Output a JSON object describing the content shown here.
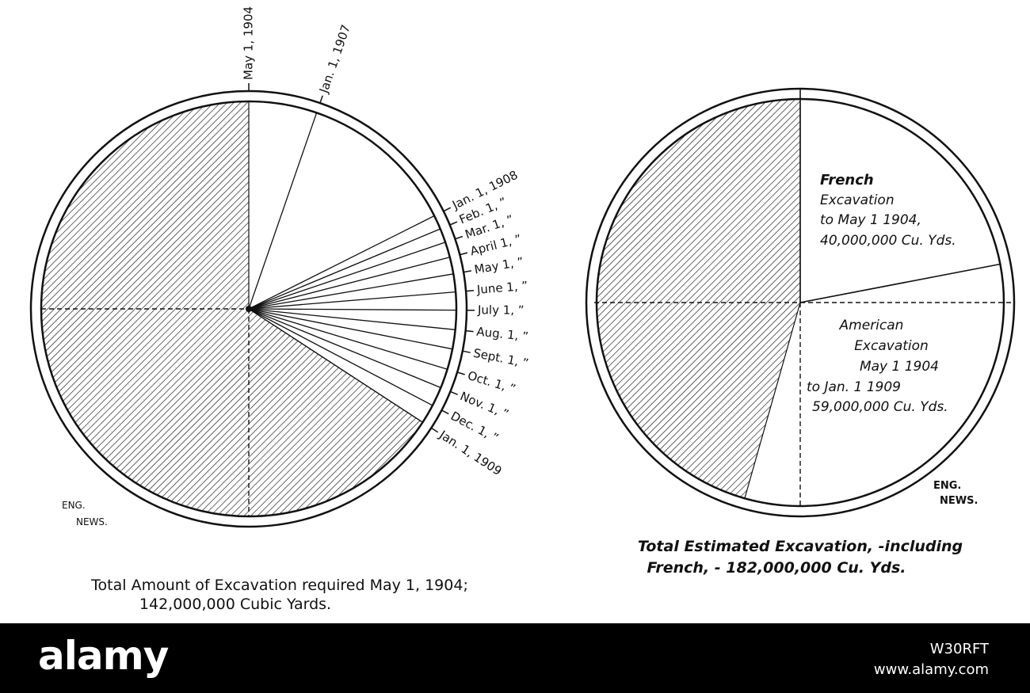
{
  "chart_data": [
    {
      "type": "pie",
      "title": "",
      "date_labels": [
        "May 1, 1904",
        "Jan. 1, 1907",
        "Jan. 1, 1908",
        "Feb. 1, ”",
        "Mar. 1, ”",
        "April 1, ”",
        "May 1, ”",
        "June 1, ”",
        "July 1, ”",
        "Aug. 1, ”",
        "Sept. 1, ”",
        "Oct. 1, ”",
        "Nov. 1, ”",
        "Dec. 1, ”",
        "Jan. 1, 1909"
      ],
      "cumulative_fraction": [
        0.0,
        0.053,
        0.176,
        0.187,
        0.198,
        0.21,
        0.223,
        0.237,
        0.251,
        0.266,
        0.281,
        0.297,
        0.312,
        0.327,
        0.342
      ],
      "total_value": 142000000,
      "unit": "Cubic Yards",
      "shaded_remainder_fraction": 0.658,
      "caption_line1": "Total Amount of Excavation required May 1, 1904;",
      "caption_line2": "142,000,000 Cubic Yards.",
      "credit_line1": "ENG.",
      "credit_line2": "NEWS."
    },
    {
      "type": "pie",
      "title": "",
      "slices": [
        {
          "label_lines": [
            "French",
            "Excavation",
            "to May 1 1904,",
            "40,000,000 Cu. Yds."
          ],
          "value": 40000000,
          "shaded": false
        },
        {
          "label_lines": [
            "American",
            "Excavation",
            "May 1 1904",
            "to Jan. 1 1909",
            "59,000,000 Cu. Yds."
          ],
          "value": 59000000,
          "shaded": false
        },
        {
          "label_lines": [],
          "value": 83000000,
          "shaded": true
        }
      ],
      "total_value": 182000000,
      "caption_line1": "Total Estimated Excavation, -including",
      "caption_line2": "French, - 182,000,000 Cu. Yds.",
      "credit_line1": "ENG.",
      "credit_line2": "NEWS."
    }
  ],
  "footer": {
    "logo": "alamy",
    "image_id": "W30RFT",
    "url": "www.alamy.com"
  },
  "colors": {
    "ink": "#111111",
    "paper": "#ffffff",
    "footer_bg": "#000000",
    "footer_text": "#ffffff"
  }
}
